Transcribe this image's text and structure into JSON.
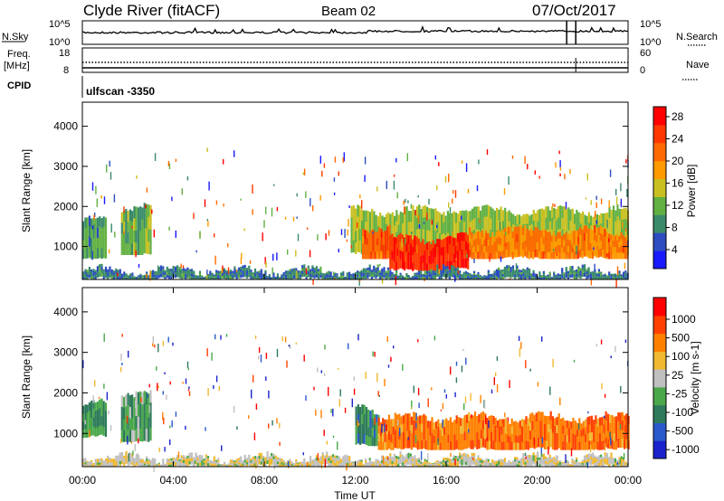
{
  "header": {
    "station": "Clyde River (fitACF)",
    "beam": "Beam 02",
    "date": "07/Oct/2017"
  },
  "strip": {
    "nsky_label": "N.Sky",
    "nsearch_label": "N.Search",
    "noise_max_label": "10^5",
    "noise_min_label": "10^0",
    "freq_label": "Freq.",
    "freq_unit": "[MHz]",
    "freq_top": "18",
    "freq_bottom": "8",
    "nave_label": "Nave",
    "nave_top": "60",
    "nave_bottom": "0",
    "cpid_label": "CPID",
    "cpid_value": "ulfscan -3350"
  },
  "axes": {
    "ylabel": "Slant Range [km]",
    "xlabel": "Time UT",
    "yticks": [
      "1000",
      "2000",
      "3000",
      "4000"
    ],
    "xticks": [
      "00:00",
      "04:00",
      "08:00",
      "12:00",
      "16:00",
      "20:00",
      "00:00"
    ]
  },
  "chart_data": [
    {
      "type": "heatmap",
      "name": "Power",
      "x": [
        "00:00",
        "04:00",
        "08:00",
        "12:00",
        "16:00",
        "20:00",
        "00:00"
      ],
      "xlim": [
        0,
        24
      ],
      "ylim": [
        180,
        4600
      ],
      "y_ticks": [
        1000,
        2000,
        3000,
        4000
      ],
      "colorbar": {
        "label": "Power [dB]",
        "ticks": [
          "4",
          "8",
          "12",
          "16",
          "20",
          "24",
          "28"
        ],
        "colors": [
          "#1a1aff",
          "#2d4dc0",
          "#3a8a6a",
          "#62b042",
          "#c8c020",
          "#ff9a00",
          "#ff6a00",
          "#ff3800",
          "#ff0000"
        ]
      },
      "regions": [
        {
          "t": [
            0.0,
            1.0
          ],
          "r": [
            700,
            1700
          ],
          "value": 10
        },
        {
          "t": [
            1.7,
            3.0
          ],
          "r": [
            800,
            2000
          ],
          "value": 12
        },
        {
          "t": [
            11.8,
            24.0
          ],
          "r": [
            800,
            1900
          ],
          "value": 14
        },
        {
          "t": [
            12.3,
            13.5
          ],
          "r": [
            700,
            1500
          ],
          "value": 24
        },
        {
          "t": [
            13.5,
            17.0
          ],
          "r": [
            400,
            1200
          ],
          "value": 28
        },
        {
          "t": [
            17.0,
            24.0
          ],
          "r": [
            700,
            1400
          ],
          "value": 22
        },
        {
          "t": [
            0.0,
            24.0
          ],
          "r": [
            180,
            400
          ],
          "value": 8
        }
      ]
    },
    {
      "type": "heatmap",
      "name": "Velocity",
      "x": [
        "00:00",
        "04:00",
        "08:00",
        "12:00",
        "16:00",
        "20:00",
        "00:00"
      ],
      "xlim": [
        0,
        24
      ],
      "ylim": [
        180,
        4600
      ],
      "y_ticks": [
        1000,
        2000,
        3000,
        4000
      ],
      "colorbar": {
        "label": "Velocity [m s-1]",
        "ticks": [
          "1000",
          "500",
          "100",
          "25",
          "-25",
          "-100",
          "-500",
          "-1000"
        ],
        "colors": [
          "#1a22cc",
          "#2a5acc",
          "#2e7a5a",
          "#4aa84a",
          "#c0c0c0",
          "#f0b830",
          "#ff8000",
          "#ff4000",
          "#ff0000"
        ]
      },
      "regions": [
        {
          "t": [
            0.0,
            1.0
          ],
          "r": [
            900,
            1700
          ],
          "value": -400
        },
        {
          "t": [
            1.7,
            3.0
          ],
          "r": [
            800,
            2000
          ],
          "value": -300
        },
        {
          "t": [
            12.0,
            13.0
          ],
          "r": [
            700,
            1600
          ],
          "value": -500
        },
        {
          "t": [
            13.0,
            24.0
          ],
          "r": [
            600,
            1400
          ],
          "value": 600
        },
        {
          "t": [
            0.0,
            24.0
          ],
          "r": [
            180,
            400
          ],
          "value": 50
        }
      ]
    }
  ]
}
